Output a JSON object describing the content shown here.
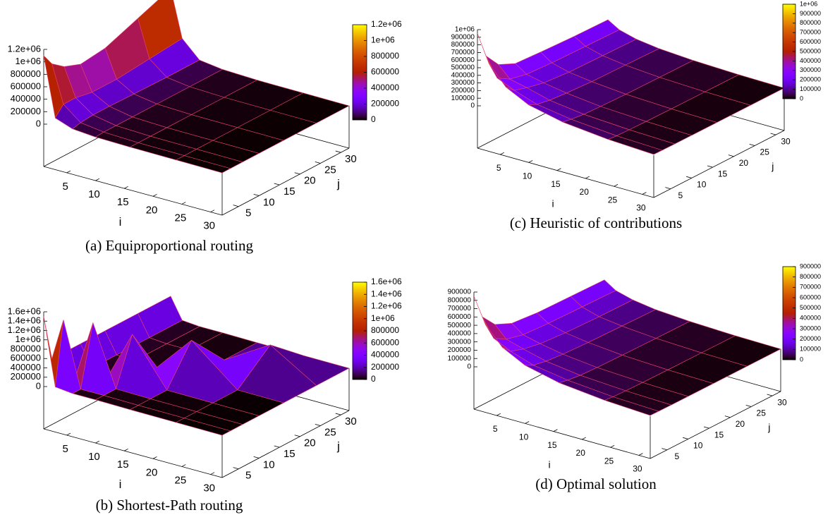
{
  "chart_data": [
    {
      "type": "surface",
      "caption": "(a)  Equiproportional routing",
      "xlabel": "i",
      "ylabel": "j",
      "x": [
        1,
        3,
        6,
        10,
        16,
        24,
        32
      ],
      "y": [
        1,
        3,
        6,
        10,
        16,
        24,
        32
      ],
      "values": [
        [
          1100000,
          900000,
          750000,
          650000,
          700000,
          900000,
          1100000
        ],
        [
          150000,
          300000,
          300000,
          250000,
          250000,
          300000,
          350000
        ],
        [
          50000,
          80000,
          100000,
          100000,
          90000,
          80000,
          80000
        ],
        [
          20000,
          30000,
          30000,
          30000,
          30000,
          30000,
          30000
        ],
        [
          10000,
          10000,
          10000,
          10000,
          10000,
          10000,
          10000
        ],
        [
          5000,
          5000,
          5000,
          5000,
          5000,
          5000,
          5000
        ],
        [
          0,
          0,
          0,
          0,
          0,
          0,
          0
        ]
      ],
      "xlim": [
        1,
        32
      ],
      "ylim": [
        1,
        32
      ],
      "xticks": [
        5,
        10,
        15,
        20,
        25,
        30
      ],
      "yticks": [
        5,
        10,
        15,
        20,
        25,
        30
      ],
      "zlim": [
        0,
        1200000
      ],
      "zticks": [
        0,
        200000,
        400000,
        600000,
        800000,
        {
          "value": 1000000,
          "label": "1e+06"
        },
        {
          "value": 1200000,
          "label": "1.2e+06"
        }
      ],
      "cblim": [
        0,
        1200000
      ],
      "cbticks": [
        0,
        200000,
        400000,
        600000,
        800000,
        {
          "value": 1000000,
          "label": "1e+06"
        },
        {
          "value": 1200000,
          "label": "1.2e+06"
        }
      ]
    },
    {
      "type": "surface",
      "caption": "(b)  Shortest-Path routing",
      "xlabel": "i",
      "ylabel": "j",
      "x": [
        1,
        3,
        6,
        10,
        16,
        24,
        32
      ],
      "y": [
        1,
        3,
        6,
        10,
        16,
        24,
        32
      ],
      "values": [
        [
          1500000,
          500000,
          500000,
          500000,
          500000,
          500000,
          500000
        ],
        [
          60000,
          1400000,
          50000,
          50000,
          50000,
          50000,
          50000
        ],
        [
          20000,
          20000,
          1300000,
          20000,
          20000,
          20000,
          20000
        ],
        [
          20000,
          20000,
          20000,
          1000000,
          20000,
          20000,
          20000
        ],
        [
          10000,
          10000,
          10000,
          10000,
          800000,
          10000,
          10000
        ],
        [
          5000,
          5000,
          5000,
          5000,
          5000,
          600000,
          5000
        ],
        [
          0,
          0,
          0,
          0,
          0,
          0,
          0
        ]
      ],
      "xlim": [
        1,
        32
      ],
      "ylim": [
        1,
        32
      ],
      "xticks": [
        5,
        10,
        15,
        20,
        25,
        30
      ],
      "yticks": [
        5,
        10,
        15,
        20,
        25,
        30
      ],
      "zlim": [
        0,
        1600000
      ],
      "zticks": [
        0,
        200000,
        400000,
        600000,
        800000,
        {
          "value": 1000000,
          "label": "1e+06"
        },
        {
          "value": 1200000,
          "label": "1.2e+06"
        },
        {
          "value": 1400000,
          "label": "1.4e+06"
        },
        {
          "value": 1600000,
          "label": "1.6e+06"
        }
      ],
      "cblim": [
        0,
        1600000
      ],
      "cbticks": [
        0,
        200000,
        400000,
        600000,
        800000,
        {
          "value": 1000000,
          "label": "1e+06"
        },
        {
          "value": 1200000,
          "label": "1.2e+06"
        },
        {
          "value": 1400000,
          "label": "1.4e+06"
        },
        {
          "value": 1600000,
          "label": "1.6e+06"
        }
      ]
    },
    {
      "type": "surface",
      "caption": "(c)  Heuristic of contributions",
      "xlabel": "i",
      "ylabel": "j",
      "x": [
        1,
        3,
        6,
        10,
        16,
        24,
        32
      ],
      "y": [
        1,
        3,
        6,
        10,
        16,
        24,
        32
      ],
      "values": [
        [
          950000,
          600000,
          400000,
          300000,
          280000,
          260000,
          250000
        ],
        [
          600000,
          350000,
          250000,
          200000,
          180000,
          170000,
          160000
        ],
        [
          350000,
          250000,
          200000,
          150000,
          120000,
          110000,
          100000
        ],
        [
          200000,
          150000,
          120000,
          100000,
          80000,
          70000,
          60000
        ],
        [
          100000,
          80000,
          60000,
          50000,
          40000,
          35000,
          30000
        ],
        [
          40000,
          30000,
          25000,
          20000,
          15000,
          12000,
          10000
        ],
        [
          10000,
          8000,
          6000,
          5000,
          4000,
          3000,
          2000
        ]
      ],
      "xlim": [
        1,
        32
      ],
      "ylim": [
        1,
        32
      ],
      "xticks": [
        5,
        10,
        15,
        20,
        25,
        30
      ],
      "yticks": [
        5,
        10,
        15,
        20,
        25,
        30
      ],
      "zlim": [
        0,
        1000000
      ],
      "zticks": [
        0,
        100000,
        200000,
        300000,
        400000,
        500000,
        600000,
        700000,
        800000,
        900000,
        {
          "value": 1000000,
          "label": "1e+06"
        }
      ],
      "cblim": [
        0,
        1000000
      ],
      "cbticks": [
        0,
        100000,
        200000,
        300000,
        400000,
        500000,
        600000,
        700000,
        800000,
        900000,
        {
          "value": 1000000,
          "label": "1e+06"
        }
      ]
    },
    {
      "type": "surface",
      "caption": "(d)  Optimal solution",
      "xlabel": "i",
      "ylabel": "j",
      "x": [
        1,
        3,
        6,
        10,
        16,
        24,
        32
      ],
      "y": [
        1,
        3,
        6,
        10,
        16,
        24,
        32
      ],
      "values": [
        [
          850000,
          550000,
          380000,
          290000,
          260000,
          250000,
          240000
        ],
        [
          550000,
          330000,
          240000,
          190000,
          170000,
          160000,
          150000
        ],
        [
          330000,
          230000,
          180000,
          140000,
          115000,
          100000,
          95000
        ],
        [
          190000,
          140000,
          110000,
          90000,
          75000,
          65000,
          55000
        ],
        [
          95000,
          75000,
          55000,
          45000,
          38000,
          32000,
          28000
        ],
        [
          38000,
          28000,
          22000,
          18000,
          14000,
          11000,
          9000
        ],
        [
          9000,
          7000,
          5000,
          4000,
          3000,
          2500,
          2000
        ]
      ],
      "xlim": [
        1,
        32
      ],
      "ylim": [
        1,
        32
      ],
      "xticks": [
        5,
        10,
        15,
        20,
        25,
        30
      ],
      "yticks": [
        5,
        10,
        15,
        20,
        25,
        30
      ],
      "zlim": [
        0,
        900000
      ],
      "zticks": [
        0,
        100000,
        200000,
        300000,
        400000,
        500000,
        600000,
        700000,
        800000,
        900000
      ],
      "cblim": [
        0,
        900000
      ],
      "cbticks": [
        0,
        100000,
        200000,
        300000,
        400000,
        500000,
        600000,
        700000,
        800000,
        900000
      ]
    }
  ]
}
